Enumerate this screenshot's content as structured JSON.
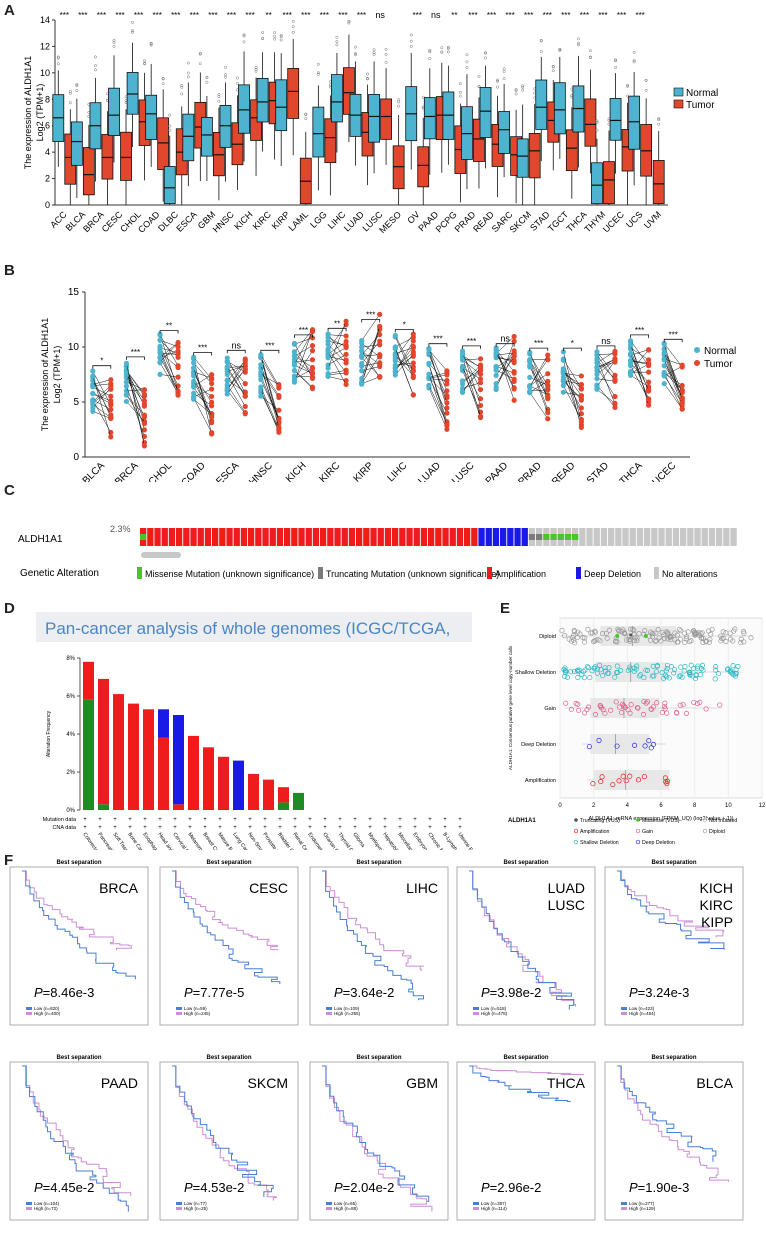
{
  "panels": {
    "A": "A",
    "B": "B",
    "C": "C",
    "D": "D",
    "E": "E",
    "F": "F"
  },
  "chart_data": [
    {
      "id": "A",
      "type": "box",
      "ylabel_line1": "The  expression  of  ALDH1A1",
      "ylabel_line2": "Log2 (TPM+1)",
      "ylim": [
        0,
        14
      ],
      "yticks": [
        0,
        2,
        4,
        6,
        8,
        10,
        12,
        14
      ],
      "legend": [
        {
          "name": "Normal",
          "color": "#4db3cf"
        },
        {
          "name": "Tumor",
          "color": "#e1472c"
        }
      ],
      "categories": [
        "ACC",
        "BLCA",
        "BRCA",
        "CESC",
        "CHOL",
        "COAD",
        "DLBC",
        "ESCA",
        "GBM",
        "HNSC",
        "KICH",
        "KIRC",
        "KIRP",
        "LAML",
        "LGG",
        "LIHC",
        "LUAD",
        "LUSC",
        "MESO",
        "OV",
        "PAAD",
        "PCPG",
        "PRAD",
        "READ",
        "SARC",
        "SKCM",
        "STAD",
        "TGCT",
        "THCA",
        "THYM",
        "UCEC",
        "UCS",
        "UVM"
      ],
      "significance": [
        "***",
        "***",
        "***",
        "***",
        "***",
        "***",
        "***",
        "***",
        "***",
        "***",
        "***",
        "**",
        "***",
        "***",
        "***",
        "***",
        "***",
        "ns",
        "",
        "***",
        "ns",
        "**",
        "***",
        "***",
        "***",
        "***",
        "***",
        "***",
        "***",
        "***",
        "***",
        "***",
        ""
      ],
      "normal_median": [
        6.6,
        4.8,
        6.0,
        6.8,
        8.4,
        6.9,
        1.3,
        5.2,
        5.3,
        6.0,
        7.2,
        7.8,
        7.4,
        null,
        5.4,
        7.8,
        6.8,
        6.7,
        null,
        6.9,
        6.7,
        6.8,
        5.4,
        7.1,
        5.7,
        3.7,
        7.4,
        7.2,
        7.3,
        1.5,
        6.4,
        6.3,
        null
      ],
      "tumor_median": [
        3.6,
        2.3,
        3.6,
        3.6,
        6.3,
        4.7,
        4.0,
        5.9,
        3.8,
        4.6,
        6.6,
        7.9,
        8.6,
        1.8,
        5.1,
        8.5,
        5.5,
        6.7,
        2.9,
        3.0,
        6.8,
        4.2,
        5.0,
        4.6,
        3.8,
        4.1,
        6.4,
        4.3,
        6.1,
        1.9,
        4.4,
        4.1,
        1.6
      ]
    },
    {
      "id": "B",
      "type": "paired-dot",
      "ylabel_line1": "The expression of ALDH1A1",
      "ylabel_line2": "Log2 (TPM+1)",
      "ylim": [
        0,
        15
      ],
      "yticks": [
        0,
        5,
        10,
        15
      ],
      "legend": [
        {
          "name": "Normal",
          "color": "#4db3cf"
        },
        {
          "name": "Tumor",
          "color": "#e1472c"
        }
      ],
      "categories": [
        "BLCA",
        "BRCA",
        "CHOL",
        "COAD",
        "ESCA",
        "HNSC",
        "KICH",
        "KIRC",
        "KIRP",
        "LIHC",
        "LUAD",
        "LUSC",
        "PAAD",
        "PRAD",
        "READ",
        "STAD",
        "THCA",
        "UCEC"
      ],
      "significance": [
        "*",
        "***",
        "**",
        "***",
        "ns",
        "***",
        "***",
        "**",
        "***",
        "*",
        "***",
        "***",
        "ns",
        "***",
        "*",
        "ns",
        "***",
        "***"
      ],
      "normal_center": [
        6.0,
        6.8,
        9.2,
        7.2,
        7.4,
        7.4,
        8.6,
        9.3,
        8.6,
        9.3,
        8.0,
        7.8,
        8.0,
        7.6,
        7.6,
        7.8,
        8.8,
        8.4
      ],
      "tumor_center": [
        4.6,
        3.8,
        8.4,
        4.6,
        6.5,
        5.0,
        8.8,
        9.4,
        10.2,
        8.6,
        5.4,
        6.3,
        8.0,
        6.4,
        5.6,
        6.8,
        7.4,
        6.2
      ]
    }
  ],
  "panelC": {
    "gene": "ALDH1A1",
    "percent": "2.3%",
    "title": "Genetic Alteration",
    "legend": [
      {
        "label": "Missense Mutation (unknown significance)",
        "color": "#4bc42b"
      },
      {
        "label": "Truncating Mutation (unknown significance)",
        "color": "#7b7b7b"
      },
      {
        "label": "Amplification",
        "color": "#ee1c1c"
      },
      {
        "label": "Deep Deletion",
        "color": "#1a1ae6"
      },
      {
        "label": "No alterations",
        "color": "#c8c8c8"
      }
    ],
    "counts": {
      "amplification": 47,
      "deep_deletion": 7,
      "truncating": 2,
      "missense": 5,
      "no_alteration": 37
    }
  },
  "panelD": {
    "header": "Pan-cancer analysis of whole genomes (ICGC/TCGA,",
    "ylabel": "Alteration Frequency",
    "yticks": [
      "0%",
      "2%",
      "4%",
      "6%",
      "8%"
    ],
    "row_labels": [
      "Mutation data",
      "CNA data"
    ],
    "categories": [
      "Colorectal Cancer",
      "Pancreatic Cancer",
      "Soft Tissue Sarcoma",
      "Bone Cancer",
      "Esophagogastric Cancer",
      "Head and Neck Cancer",
      "Cervical Cancer",
      "Melanoma",
      "Breast Cancer",
      "Mature B-cell Lymphoma",
      "Lung Cancer",
      "Non-Small Cell Lung Cancer",
      "Prostate Cancer",
      "Bladder Cancer",
      "Renal Cell Carcinoma",
      "Endometrial Cancer",
      "Ovarian Cancer",
      "Thyroid Cancer",
      "Glioma",
      "Myeloproliferative Neoplasms",
      "Hepatobiliary Cancer",
      "Miscellaneous Neuroepithelial Tumor",
      "Embryonal Tumor",
      "Chronic Myelogenous Leukemia",
      "B-Lymphoblastic Leukemia/Lymphoma",
      "Uterine Endometrioid Carcinoma"
    ],
    "series": [
      {
        "name": "Mutation",
        "color": "#1f8b25",
        "values": [
          5.8,
          0.3,
          0,
          0,
          0,
          0,
          0,
          0,
          0,
          0,
          0,
          0,
          0,
          0.4,
          0.9,
          0,
          0,
          0,
          0,
          0,
          0,
          0,
          0,
          0,
          0,
          0
        ]
      },
      {
        "name": "Amplification",
        "color": "#ee1c1c",
        "values": [
          2.0,
          6.6,
          6.1,
          5.6,
          5.3,
          3.8,
          0.3,
          3.9,
          3.3,
          2.8,
          0,
          1.9,
          1.6,
          0.8,
          0,
          0,
          0,
          0,
          0,
          0,
          0,
          0,
          0,
          0,
          0,
          0
        ]
      },
      {
        "name": "Deep Deletion",
        "color": "#1a1ae6",
        "values": [
          0,
          0,
          0,
          0,
          0,
          1.5,
          4.7,
          0,
          0,
          0,
          2.6,
          0,
          0,
          0,
          0,
          0,
          0,
          0,
          0,
          0,
          0,
          0,
          0,
          0,
          0,
          0
        ]
      }
    ]
  },
  "panelE": {
    "xlabel": "ALDH1A1: mRNA expression (FPKM_UQ) (log2(value + 1))",
    "ylabel": "ALDH1A1: Consensus putative gene level copy-number calls",
    "xticks": [
      0,
      2,
      4,
      6,
      8,
      10,
      12
    ],
    "categories": [
      {
        "name": "Diploid",
        "color": "#9a9a9a",
        "median": 4.3,
        "q1": 2.4,
        "q3": 6.9,
        "min": 0,
        "max": 11.4
      },
      {
        "name": "Shallow Deletion",
        "color": "#2bb8c4",
        "median": 4.2,
        "q1": 2.1,
        "q3": 6.3,
        "min": 0.2,
        "max": 10.8
      },
      {
        "name": "Gain",
        "color": "#e15c8a",
        "median": 3.8,
        "q1": 1.8,
        "q3": 5.9,
        "min": 0.3,
        "max": 9.6
      },
      {
        "name": "Deep Deletion",
        "color": "#2a2adf",
        "median": 3.3,
        "q1": 1.8,
        "q3": 5.3,
        "min": 1.3,
        "max": 6.3
      },
      {
        "name": "Amplification",
        "color": "#e21e1e",
        "median": 3.9,
        "q1": 2.0,
        "q3": 6.5,
        "min": 1.6,
        "max": 6.6
      }
    ],
    "legend_title": "ALDH1A1",
    "legend": [
      {
        "label": "Truncating (VUS)",
        "color": "#555555",
        "symbol": "dot"
      },
      {
        "label": "Missense (VUS)",
        "color": "#4bc42b",
        "symbol": "dot"
      },
      {
        "label": "Not mutated",
        "color": "#bbbbbb",
        "symbol": "ring"
      },
      {
        "label": "Amplification",
        "color": "#e21e1e",
        "symbol": "ring"
      },
      {
        "label": "Gain",
        "color": "#e15c8a",
        "symbol": "ring"
      },
      {
        "label": "Diploid",
        "color": "#9a9a9a",
        "symbol": "ring"
      },
      {
        "label": "Shallow Deletion",
        "color": "#2bb8c4",
        "symbol": "ring"
      },
      {
        "label": "Deep Deletion",
        "color": "#2a2adf",
        "symbol": "ring"
      }
    ]
  },
  "panelF": {
    "plot_title": "Best separation",
    "low_color": "#4a7fd6",
    "high_color": "#cc8fd6",
    "plots": [
      {
        "cancer": [
          "BRCA"
        ],
        "p": "=8.46e-3",
        "low": "Low (n=820)",
        "high": "High (n=400)",
        "end_low": 0.25,
        "end_high": 0.45
      },
      {
        "cancer": [
          "CESC"
        ],
        "p": "=7.77e-5",
        "low": "Low (n=59)",
        "high": "High (n=245)",
        "end_low": 0.2,
        "end_high": 0.45
      },
      {
        "cancer": [
          "LIHC"
        ],
        "p": "=3.64e-2",
        "low": "Low (n=109)",
        "high": "High (n=255)",
        "end_low": 0.1,
        "end_high": 0.3
      },
      {
        "cancer": [
          "LUAD",
          "LUSC"
        ],
        "p": "=3.98e-2",
        "low": "Low (n=518)",
        "high": "High (n=478)",
        "end_low": 0.05,
        "end_high": 0.05
      },
      {
        "cancer": [
          "KICH",
          "KIRC",
          "KIPP"
        ],
        "p": "=3.24e-3",
        "low": "Low (n=423)",
        "high": "High (n=454)",
        "end_low": 0.45,
        "end_high": 0.55
      },
      {
        "cancer": [
          "PAAD"
        ],
        "p": "=4.45e-2",
        "low": "Low (n=104)",
        "high": "High (n=72)",
        "end_low": 0.0,
        "end_high": 0.1
      },
      {
        "cancer": [
          "SKCM"
        ],
        "p": "=4.53e-2",
        "low": "Low (n=77)",
        "high": "High (n=25)",
        "end_low": 0.1,
        "end_high": 0.05
      },
      {
        "cancer": [
          "GBM"
        ],
        "p": "=2.04e-2",
        "low": "Low (n=65)",
        "high": "High (n=88)",
        "end_low": 0.05,
        "end_high": 0.0
      },
      {
        "cancer": [
          "THCA"
        ],
        "p": "=2.96e-2",
        "low": "Low (n=387)",
        "high": "High (n=114)",
        "end_low": 0.75,
        "end_high": 0.95
      },
      {
        "cancer": [
          "BLCA"
        ],
        "p": "=1.90e-3",
        "low": "Low (n=277)",
        "high": "High (n=129)",
        "end_low": 0.35,
        "end_high": 0.2
      }
    ]
  }
}
